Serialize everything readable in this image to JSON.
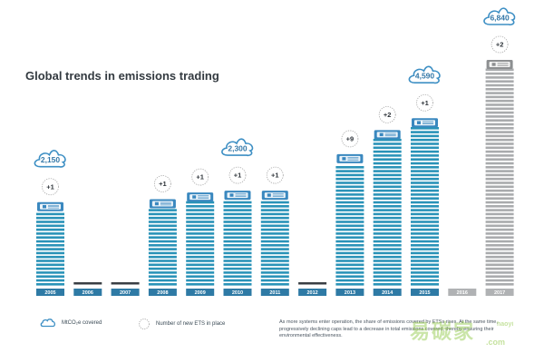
{
  "chart_data": {
    "type": "bar",
    "title": "Global trends in emissions trading",
    "categories": [
      "2005",
      "2006",
      "2007",
      "2008",
      "2009",
      "2010",
      "2011",
      "2012",
      "2013",
      "2014",
      "2015",
      "2016",
      "2017"
    ],
    "new_ets": [
      1,
      0,
      0,
      1,
      1,
      1,
      1,
      0,
      9,
      2,
      1,
      0,
      2
    ],
    "new_ets_labels": [
      "+1",
      "",
      "",
      "+1",
      "+1",
      "+1",
      "+1",
      "",
      "+9",
      "+2",
      "+1",
      "",
      "+2"
    ],
    "callouts": [
      {
        "category": "2005",
        "value": "2,150"
      },
      {
        "category": "2010",
        "value": "2,300"
      },
      {
        "category": "2015",
        "value": "4,590"
      },
      {
        "category": "2017",
        "value": "6,840"
      }
    ],
    "bar_levels": [
      0.368,
      0,
      0,
      0.381,
      0.411,
      0.419,
      0.419,
      0,
      0.581,
      0.688,
      0.741,
      0,
      1.0
    ],
    "projected": [
      "2016",
      "2017"
    ],
    "colors": {
      "bar": "#2a93b8",
      "bar_top": "#3a88bf",
      "bar_projected": "#a9abad",
      "cloud": "#3d8fc4",
      "cloud_fill": "#ffffff",
      "year_bg": "#2e7aa5",
      "year_bg_projected": "#b0b2b4",
      "empty_dash": "#3a3f44",
      "title": "#333a40"
    },
    "legend": [
      {
        "icon": "cloud-icon",
        "label": "MtCO₂e covered"
      },
      {
        "icon": "circle-icon",
        "label": "Number of new ETS in place"
      }
    ],
    "footnote": "As more systems enter operation, the share of emissions covered by ETSs rises. At the same time, progressively declining caps lead to a decrease in total emissions covered, thereby ensuring their environmental effectiveness."
  },
  "watermark": {
    "text": "易碳家",
    "url": ".com",
    "top": "haoyi"
  }
}
